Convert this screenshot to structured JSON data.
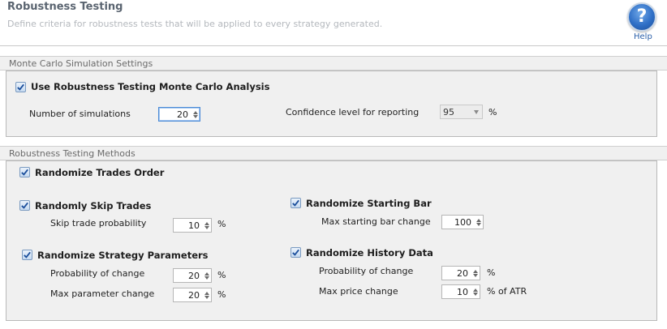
{
  "header": {
    "title": "Robustness Testing",
    "subtitle": "Define criteria for robustness tests that will be applied to every strategy generated.",
    "help_label": "Help",
    "help_glyph": "?"
  },
  "monte_carlo": {
    "group_title": "Monte Carlo Simulation Settings",
    "use_label": "Use Robustness Testing Monte Carlo Analysis",
    "use_checked": true,
    "num_sim_label": "Number of simulations",
    "num_sim_value": "20",
    "confidence_label": "Confidence level for reporting",
    "confidence_value": "95",
    "confidence_unit": "%"
  },
  "methods": {
    "group_title": "Robustness Testing Methods",
    "randomize_trades_order": {
      "label": "Randomize Trades Order",
      "checked": true
    },
    "skip_trades": {
      "label": "Randomly Skip Trades",
      "checked": true,
      "prob_label": "Skip trade probability",
      "prob_value": "10",
      "prob_unit": "%"
    },
    "strategy_params": {
      "label": "Randomize Strategy Parameters",
      "checked": true,
      "prob_label": "Probability of change",
      "prob_value": "20",
      "prob_unit": "%",
      "max_label": "Max parameter change",
      "max_value": "20",
      "max_unit": "%"
    },
    "starting_bar": {
      "label": "Randomize Starting Bar",
      "checked": true,
      "max_label": "Max starting bar change",
      "max_value": "100"
    },
    "history_data": {
      "label": "Randomize History Data",
      "checked": true,
      "prob_label": "Probability of change",
      "prob_value": "20",
      "prob_unit": "%",
      "max_label": "Max price change",
      "max_value": "10",
      "max_unit": "% of ATR"
    }
  },
  "icons": {
    "help": "help-question-icon",
    "check": "checkmark-icon",
    "spin_up": "arrow-up-icon",
    "spin_down": "arrow-down-icon",
    "dropdown": "chevron-down-icon"
  },
  "colors": {
    "accent": "#2f6fc6",
    "panel": "#f0f0f0",
    "title": "#5a6470",
    "subtitle": "#b4b8bd"
  }
}
